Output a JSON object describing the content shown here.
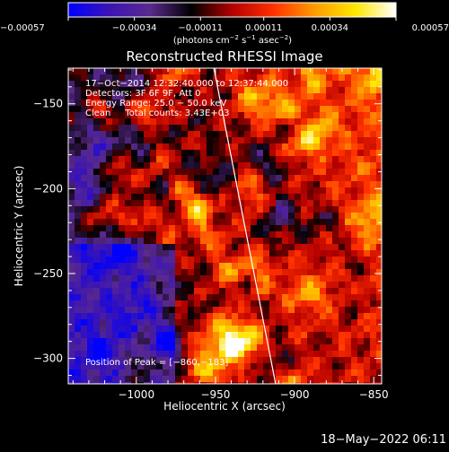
{
  "chart_data": {
    "type": "heatmap",
    "title": "Reconstructed RHESSI Image",
    "xlabel": "Heliocentric X (arcsec)",
    "ylabel": "Heliocentric Y (arcsec)",
    "xlim": [
      -1043,
      -845
    ],
    "ylim": [
      -315,
      -129
    ],
    "x_ticks": [
      -1000,
      -950,
      -900,
      -850
    ],
    "y_ticks": [
      -150,
      -200,
      -250,
      -300
    ],
    "x_tick_labels": [
      "−1000",
      "−950",
      "−900",
      "−850"
    ],
    "y_tick_labels": [
      "−150",
      "−200",
      "−250",
      "−300"
    ],
    "colorbar": {
      "range": [
        -0.00057,
        0.00057
      ],
      "tick_values": [
        -0.00057,
        -0.00034,
        -0.00011,
        0.00011,
        0.00034,
        0.00057
      ],
      "tick_labels": [
        "−0.00057",
        "−0.00034",
        "−0.00011",
        "0.00011",
        "0.00034",
        "0.00057"
      ],
      "unit_prefix": "(photons cm",
      "unit_exp1": "−2",
      "unit_mid1": " s",
      "unit_exp2": "−1",
      "unit_mid2": " asec",
      "unit_exp3": "−2",
      "unit_suffix": ")",
      "colormap": [
        "#0000ff",
        "#3a14b4",
        "#5a2a8c",
        "#000000",
        "#b40000",
        "#ff3000",
        "#ff9a00",
        "#ffe600",
        "#ffffff"
      ]
    },
    "annotations": {
      "time": "17−Oct−2014 12:32:40.000 to 12:37:44.000",
      "detectors": "Detectors: 3F 6F 9F, Att 0",
      "energy": "Energy Range: 25.0 − 50.0 keV",
      "clean": "Clean     Total counts: 3.43E+03",
      "peak_prefix": "Position of Peak = ",
      "peak_value": "[−860,−183]"
    },
    "limb_line": [
      [
        -951,
        -129
      ],
      [
        -912,
        -315
      ]
    ],
    "grid": false,
    "legend": "none"
  },
  "footer": {
    "date": "18−May−2022 06:11"
  }
}
